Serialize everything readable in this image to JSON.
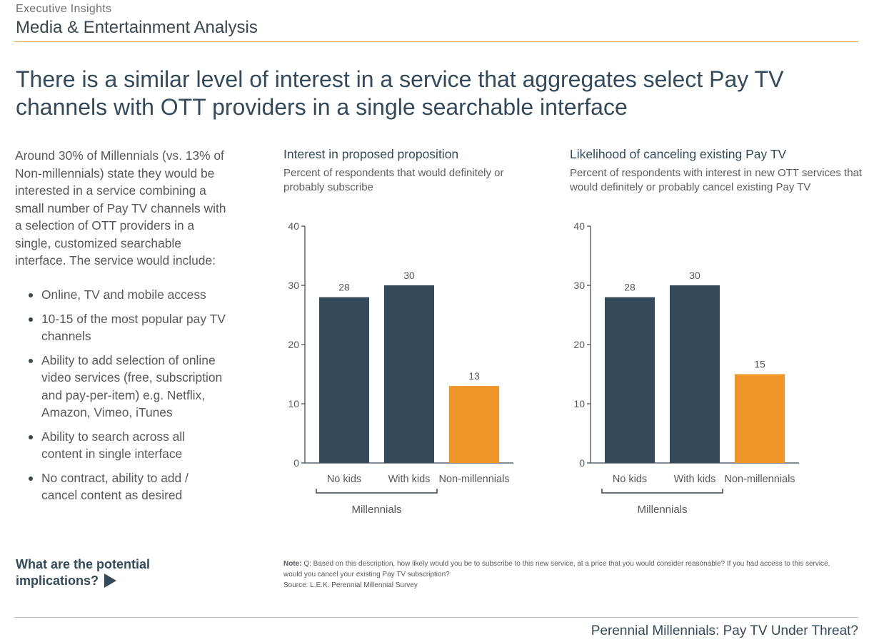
{
  "header": {
    "kicker": "Executive Insights",
    "section": "Media & Entertainment Analysis"
  },
  "headline": "There is a similar level of interest in a service that aggregates select Pay TV channels with OTT providers in a single searchable interface",
  "intro": "Around 30% of Millennials (vs. 13% of Non-millennials) state they would be interested in a service combining a small number of Pay TV channels with a selection of OTT providers in a single, customized searchable interface. The service would include:",
  "bullets": [
    "Online, TV and mobile access",
    "10-15 of the most popular pay TV channels",
    "Ability to add selection of online video services (free, subscription and pay-per-item) e.g. Netflix, Amazon, Vimeo, iTunes",
    "Ability to search across all content in single interface",
    "No contract, ability to add / cancel content as desired"
  ],
  "cta": {
    "line1": "What are the potential",
    "line2": "implications?"
  },
  "chart_data": [
    {
      "type": "bar",
      "title": "Interest in proposed proposition",
      "subtitle": "Percent of respondents that would definitely or probably subscribe",
      "categories": [
        "No kids",
        "With kids",
        "Non-millennials"
      ],
      "values": [
        28,
        30,
        13
      ],
      "group_label": "Millennials",
      "grouped_categories": [
        "No kids",
        "With kids"
      ],
      "ylim": [
        0,
        40
      ],
      "yticks": [
        0,
        10,
        20,
        30,
        40
      ],
      "bar_colors": [
        "#344a58",
        "#344a58",
        "#f0952a"
      ],
      "grid": false
    },
    {
      "type": "bar",
      "title": "Likelihood of canceling existing Pay TV",
      "subtitle": "Percent of respondents with interest in new OTT services that would definitely or probably cancel existing Pay TV",
      "categories": [
        "No kids",
        "With kids",
        "Non-millennials"
      ],
      "values": [
        28,
        30,
        15
      ],
      "group_label": "Millennials",
      "grouped_categories": [
        "No kids",
        "With kids"
      ],
      "ylim": [
        0,
        40
      ],
      "yticks": [
        0,
        10,
        20,
        30,
        40
      ],
      "bar_colors": [
        "#344a58",
        "#344a58",
        "#f0952a"
      ],
      "grid": false
    }
  ],
  "note": {
    "label": "Note:",
    "text": "Q: Based on this description, how likely would you be to subscribe to this new service, at a price that you would consider reasonable? If you had access to this service, would you cancel your existing Pay TV subscription?",
    "source": "Source: L.E.K. Perennial Millennial Survey"
  },
  "footer": "Perennial Millennials: Pay TV Under Threat?",
  "colors": {
    "navy": "#344a58",
    "orange": "#f0952a",
    "accent_rule": "#e8a24a"
  }
}
